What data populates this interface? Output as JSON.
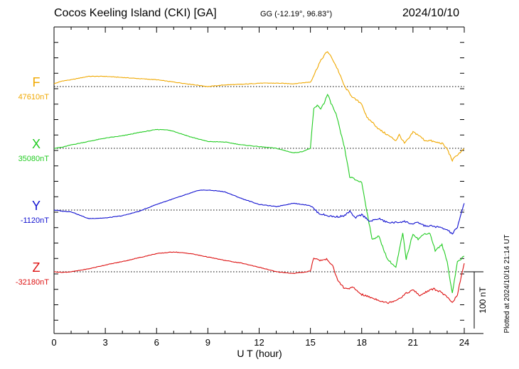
{
  "header": {
    "title": "Cocos Keeling Island (CKI)  [GA]",
    "coords": "GG (-12.19°,  96.83°)",
    "date": "2024/10/10"
  },
  "side_note": "Plotted at 2024/10/16 21:14 UT",
  "scale_label": "100 nT",
  "chart_data": {
    "type": "line",
    "title": "Cocos Keeling Island (CKI)  [GA]",
    "xlabel": "U T (hour)",
    "ylabel": "",
    "xlim": [
      0,
      24
    ],
    "xticks": [
      0,
      3,
      6,
      9,
      12,
      15,
      18,
      21,
      24
    ],
    "xtick_labels": [
      "0",
      "3",
      "6",
      "9",
      "12",
      "15",
      "18",
      "21",
      "24"
    ],
    "y_unit": "nT",
    "scale_bar_nT": 100,
    "grid": "dotted horizontal baselines per component",
    "series": [
      {
        "name": "F",
        "baseline_label": "47610nT",
        "baseline_nT": 47610,
        "color": "#f0a800",
        "x": [
          0,
          0.5,
          1,
          1.5,
          2,
          3,
          4,
          5,
          6,
          7,
          8,
          9,
          10,
          11,
          12,
          13,
          14,
          15,
          15.2,
          15.5,
          15.8,
          16,
          16.3,
          16.6,
          17,
          17.5,
          18,
          18.3,
          18.6,
          19,
          19.5,
          20,
          20.2,
          20.5,
          20.8,
          21,
          21.3,
          21.7,
          22,
          22.3,
          22.7,
          23,
          23.3,
          23.6,
          24
        ],
        "values": [
          5,
          10,
          12,
          15,
          18,
          18,
          16,
          14,
          12,
          8,
          4,
          0,
          3,
          4,
          6,
          6,
          5,
          8,
          20,
          40,
          55,
          62,
          48,
          30,
          0,
          -20,
          -30,
          -55,
          -62,
          -75,
          -85,
          -95,
          -85,
          -100,
          -90,
          -80,
          -85,
          -95,
          -95,
          -98,
          -100,
          -110,
          -130,
          -120,
          -110
        ]
      },
      {
        "name": "X",
        "baseline_label": "35080nT",
        "baseline_nT": 35080,
        "color": "#22cc22",
        "x": [
          0,
          0.5,
          1,
          2,
          3,
          4,
          5,
          6,
          6.5,
          7,
          8,
          9,
          10,
          11,
          12,
          13,
          14,
          14.5,
          15,
          15.2,
          15.4,
          15.6,
          15.8,
          16,
          16.2,
          16.5,
          17,
          17.3,
          17.6,
          18,
          18.3,
          18.6,
          19,
          19.5,
          20,
          20.2,
          20.4,
          20.6,
          21,
          21.3,
          21.7,
          22,
          22.3,
          22.7,
          23,
          23.3,
          23.6,
          24
        ],
        "values": [
          0,
          2,
          6,
          12,
          18,
          22,
          28,
          33,
          33,
          30,
          20,
          12,
          11,
          6,
          3,
          0,
          -8,
          -6,
          0,
          70,
          75,
          70,
          80,
          95,
          80,
          60,
          0,
          -50,
          -55,
          -60,
          -110,
          -160,
          -155,
          -195,
          -210,
          -180,
          -150,
          -195,
          -150,
          -160,
          -150,
          -150,
          -180,
          -170,
          -200,
          -255,
          -200,
          -190
        ]
      },
      {
        "name": "Y",
        "baseline_label": "-1120nT",
        "baseline_nT": -1120,
        "color": "#1010d0",
        "x": [
          0,
          0.5,
          1,
          2,
          3,
          4,
          5,
          6,
          7,
          8,
          8.5,
          9,
          9.5,
          10,
          11,
          12,
          13,
          14,
          15,
          15.5,
          16,
          16.5,
          17,
          17.3,
          17.6,
          18,
          18.5,
          19,
          19.5,
          20,
          20.5,
          21,
          21.3,
          21.7,
          22,
          22.5,
          23,
          23.3,
          23.6,
          24
        ],
        "values": [
          0,
          -2,
          -3,
          -15,
          -14,
          -10,
          -2,
          10,
          20,
          30,
          35,
          35,
          34,
          32,
          20,
          10,
          6,
          12,
          8,
          -6,
          -10,
          -12,
          -10,
          -2,
          -14,
          -8,
          -20,
          -15,
          -22,
          -22,
          -20,
          -25,
          -22,
          -28,
          -28,
          -30,
          -35,
          -42,
          -30,
          12
        ]
      },
      {
        "name": "Z",
        "baseline_label": "-32180nT",
        "baseline_nT": -32180,
        "color": "#dd1111",
        "x": [
          0,
          0.5,
          1,
          2,
          3,
          4,
          5,
          6,
          7,
          8,
          9,
          10,
          11,
          12,
          13,
          14,
          14.8,
          15,
          15.2,
          15.5,
          16,
          16.3,
          16.6,
          17,
          17.5,
          18,
          18.5,
          19,
          19.5,
          20,
          20.3,
          20.6,
          21,
          21.4,
          21.8,
          22.2,
          22.6,
          23,
          23.3,
          23.6,
          24
        ],
        "values": [
          0,
          -1,
          0,
          5,
          12,
          18,
          25,
          32,
          35,
          32,
          26,
          20,
          15,
          8,
          0,
          -3,
          0,
          2,
          25,
          20,
          22,
          10,
          -15,
          -30,
          -28,
          -40,
          -45,
          -50,
          -55,
          -50,
          -45,
          -38,
          -32,
          -42,
          -35,
          -30,
          -35,
          -45,
          -55,
          -40,
          15
        ]
      }
    ]
  }
}
